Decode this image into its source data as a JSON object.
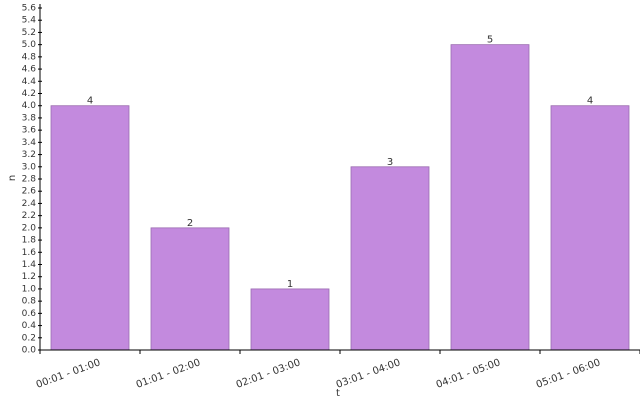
{
  "chart_data": {
    "type": "bar",
    "categories": [
      "00:01 - 01:00",
      "01:01 - 02:00",
      "02:01 - 03:00",
      "03:01 - 04:00",
      "04:01 - 05:00",
      "05:01 - 06:00"
    ],
    "values": [
      4,
      2,
      1,
      3,
      5,
      4
    ],
    "color": "#c38ade",
    "x_label": "t",
    "y_label": "n",
    "ylim": [
      0,
      5.6
    ],
    "yticks": [
      {
        "value": 0,
        "label": "0.0"
      },
      0.2,
      0.4,
      0.6,
      0.8,
      {
        "value": 1,
        "label": "1.0"
      },
      1.2,
      1.4,
      1.6,
      1.8,
      {
        "value": 2,
        "label": "2.0"
      },
      2.2,
      2.4,
      2.6,
      2.8,
      {
        "value": 3,
        "label": "3.0"
      },
      3.2,
      3.4,
      3.6,
      3.8,
      {
        "value": 4,
        "label": "4.0"
      },
      4.2,
      4.4,
      4.6,
      4.8,
      {
        "value": 5,
        "label": "5.0"
      },
      5.2,
      5.4,
      5.6
    ]
  }
}
